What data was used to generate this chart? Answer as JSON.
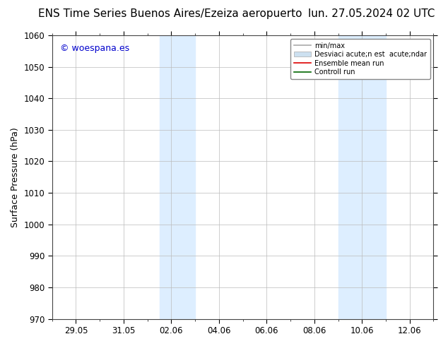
{
  "title_left": "ENS Time Series Buenos Aires/Ezeiza aeropuerto",
  "title_right": "lun. 27.05.2024 02 UTC",
  "ylabel": "Surface Pressure (hPa)",
  "ylim": [
    970,
    1060
  ],
  "yticks": [
    970,
    980,
    990,
    1000,
    1010,
    1020,
    1030,
    1040,
    1050,
    1060
  ],
  "xtick_labels": [
    "29.05",
    "31.05",
    "02.06",
    "04.06",
    "06.06",
    "08.06",
    "10.06",
    "12.06"
  ],
  "watermark": "© woespana.es",
  "watermark_color": "#0000cc",
  "shaded_bands": [
    {
      "xmin": 1.75,
      "xmax": 2.5
    },
    {
      "xmin": 5.5,
      "xmax": 6.5
    }
  ],
  "shaded_color": "#ddeeff",
  "legend_items": [
    {
      "label": "min/max",
      "color": "#aaaaaa",
      "lw": 1.2,
      "style": "line"
    },
    {
      "label": "Desviaci acute;n est  acute;ndar",
      "color": "#cce0f0",
      "style": "band"
    },
    {
      "label": "Ensemble mean run",
      "color": "#dd0000",
      "lw": 1.2,
      "style": "line"
    },
    {
      "label": "Controll run",
      "color": "#006600",
      "lw": 1.2,
      "style": "line"
    }
  ],
  "bg_color": "#ffffff",
  "grid_color": "#bbbbbb",
  "title_fontsize": 11,
  "tick_fontsize": 8.5,
  "ylabel_fontsize": 9
}
